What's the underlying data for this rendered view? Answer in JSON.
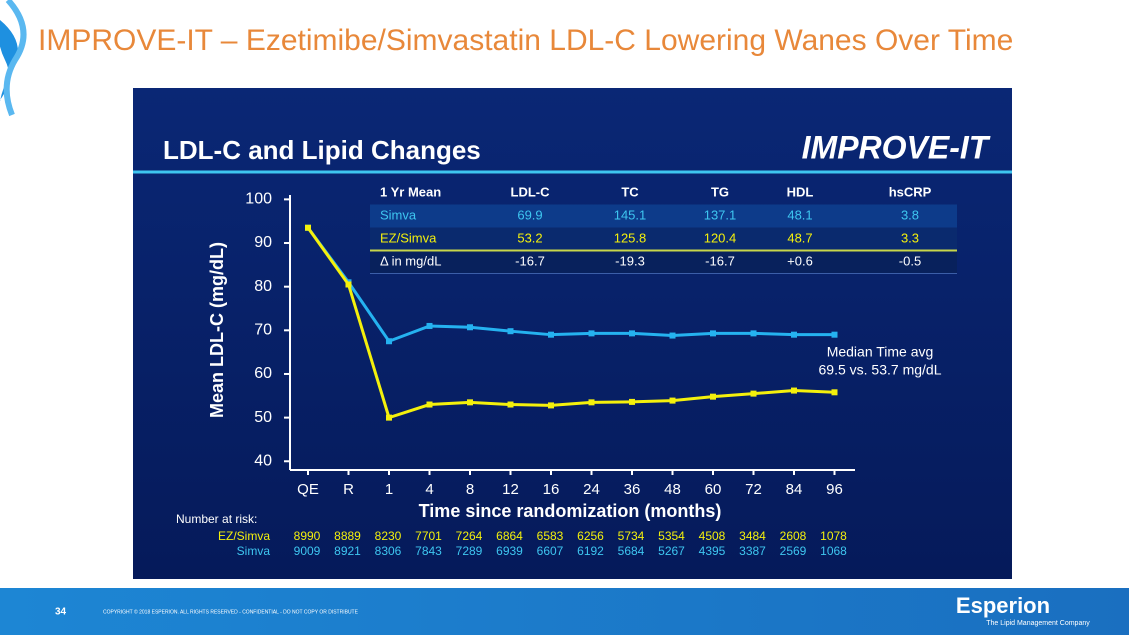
{
  "slide": {
    "title": "IMPROVE-IT – Ezetimibe/Simvastatin LDL-C Lowering Wanes Over Time",
    "page_number": "34",
    "copyright": "COPYRIGHT © 2018 ESPERION. ALL RIGHTS RESERVED - CONFIDENTIAL - DO NOT COPY OR DISTRIBUTE",
    "logo": "Esperion",
    "logo_tagline": "The Lipid Management Company"
  },
  "chart_data": {
    "type": "line",
    "title": "LDL-C and Lipid Changes",
    "trial_logo": "IMPROVE-IT",
    "y_label": "Mean LDL-C (mg/dL)",
    "x_label": "Time since randomization (months)",
    "categories": [
      "QE",
      "R",
      "1",
      "4",
      "8",
      "12",
      "16",
      "24",
      "36",
      "48",
      "60",
      "72",
      "84",
      "96"
    ],
    "series": [
      {
        "name": "Simva",
        "color": "#25b2f0",
        "values": [
          93.5,
          81,
          67.5,
          71,
          70.7,
          69.8,
          69,
          69.3,
          69.3,
          68.8,
          69.3,
          69.3,
          69,
          69
        ]
      },
      {
        "name": "EZ/Simva",
        "color": "#f4f00c",
        "values": [
          93.5,
          80.5,
          50,
          53,
          53.5,
          53,
          52.8,
          53.5,
          53.6,
          53.9,
          54.8,
          55.5,
          56.2,
          55.8
        ]
      }
    ],
    "ylim": [
      38,
      101
    ],
    "yticks": [
      40,
      50,
      60,
      70,
      80,
      90,
      100
    ],
    "grid": false,
    "annotation": [
      "Median Time avg",
      "69.5 vs. 53.7 mg/dL"
    ]
  },
  "table": {
    "header": [
      "1 Yr Mean",
      "LDL-C",
      "TC",
      "TG",
      "HDL",
      "hsCRP"
    ],
    "rows": [
      [
        "Simva",
        "69.9",
        "145.1",
        "137.1",
        "48.1",
        "3.8"
      ],
      [
        "EZ/Simva",
        "53.2",
        "125.8",
        "120.4",
        "48.7",
        "3.3"
      ],
      [
        "Δ in mg/dL",
        "-16.7",
        "-19.3",
        "-16.7",
        "+0.6",
        "-0.5"
      ]
    ]
  },
  "risk": {
    "label": "Number at risk:",
    "rows": [
      {
        "name": "EZ/Simva",
        "values": [
          8990,
          8889,
          8230,
          7701,
          7264,
          6864,
          6583,
          6256,
          5734,
          5354,
          4508,
          3484,
          2608,
          1078
        ]
      },
      {
        "name": "Simva",
        "values": [
          9009,
          8921,
          8306,
          7843,
          7289,
          6939,
          6607,
          6192,
          5684,
          5267,
          4395,
          3387,
          2569,
          1068
        ]
      }
    ]
  }
}
